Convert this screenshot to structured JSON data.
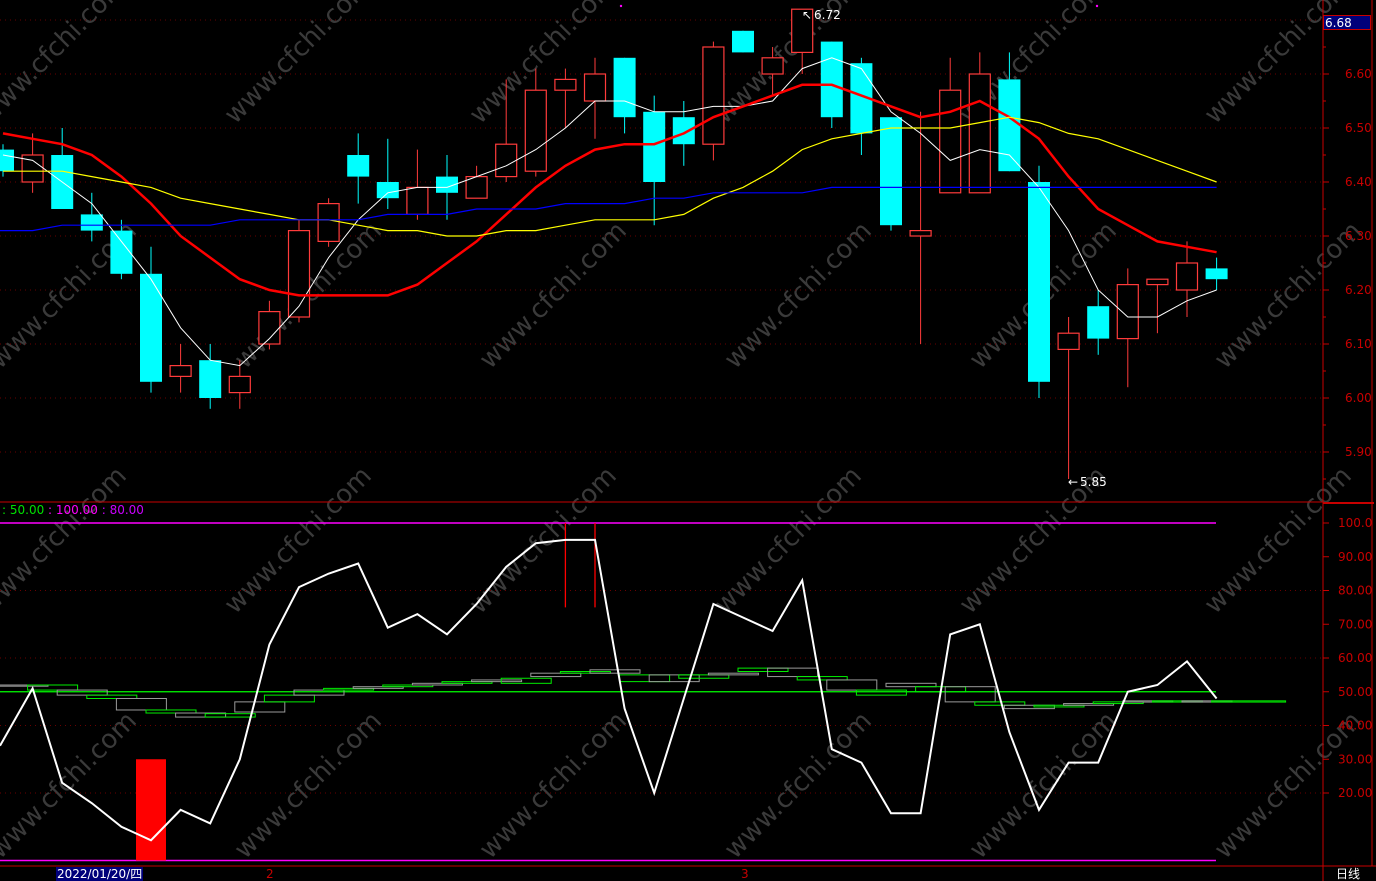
{
  "watermark": "www.cfchi.com",
  "current_price_tag": "6.68",
  "period_label": "日线",
  "date_axis": {
    "highlighted_date": "2022/01/20/四",
    "month_labels": [
      "2",
      "3"
    ]
  },
  "indicator_legend": {
    "parts": [
      ": 50.00",
      " : 100.00",
      " : 80.00"
    ],
    "colors": [
      "#00e000",
      "#ff00ff",
      "#cc00ff"
    ]
  },
  "annotations": {
    "high_label": "6.72",
    "low_label": "5.85"
  },
  "colors": {
    "up_candle": "#ff3b3b",
    "down_candle": "#00ffff",
    "ma_white": "#ffffff",
    "ma_red": "#ff0000",
    "ma_yellow": "#ffff00",
    "ma_blue": "#0000ff",
    "axis": "#c80000",
    "band": "#ff00ff",
    "step": "#00ff00"
  },
  "chart_data": [
    {
      "type": "candlestick",
      "y_axis": {
        "ticks": [
          "6.60",
          "6.50",
          "6.40",
          "6.30",
          "6.20",
          "6.10",
          "6.00",
          "5.90"
        ],
        "range": [
          5.815,
          6.737
        ],
        "grid": true
      },
      "ohlc": [
        [
          6.46,
          6.47,
          6.41,
          6.42
        ],
        [
          6.4,
          6.49,
          6.38,
          6.45
        ],
        [
          6.45,
          6.5,
          6.35,
          6.35
        ],
        [
          6.34,
          6.38,
          6.29,
          6.31
        ],
        [
          6.31,
          6.33,
          6.22,
          6.23
        ],
        [
          6.23,
          6.28,
          6.01,
          6.03
        ],
        [
          6.04,
          6.1,
          6.01,
          6.06
        ],
        [
          6.07,
          6.1,
          5.98,
          6.0
        ],
        [
          6.01,
          6.07,
          5.98,
          6.04
        ],
        [
          6.1,
          6.18,
          6.09,
          6.16
        ],
        [
          6.15,
          6.33,
          6.14,
          6.31
        ],
        [
          6.29,
          6.37,
          6.28,
          6.36
        ],
        [
          6.45,
          6.49,
          6.36,
          6.41
        ],
        [
          6.4,
          6.48,
          6.35,
          6.37
        ],
        [
          6.34,
          6.46,
          6.33,
          6.39
        ],
        [
          6.41,
          6.45,
          6.33,
          6.38
        ],
        [
          6.37,
          6.43,
          6.37,
          6.41
        ],
        [
          6.41,
          6.59,
          6.4,
          6.47
        ],
        [
          6.42,
          6.61,
          6.41,
          6.57
        ],
        [
          6.57,
          6.61,
          6.5,
          6.59
        ],
        [
          6.55,
          6.63,
          6.48,
          6.6
        ],
        [
          6.63,
          6.63,
          6.49,
          6.52
        ],
        [
          6.53,
          6.56,
          6.32,
          6.4
        ],
        [
          6.52,
          6.55,
          6.43,
          6.47
        ],
        [
          6.47,
          6.66,
          6.44,
          6.65
        ],
        [
          6.68,
          6.68,
          6.64,
          6.64
        ],
        [
          6.6,
          6.65,
          6.56,
          6.63
        ],
        [
          6.64,
          6.72,
          6.6,
          6.72
        ],
        [
          6.66,
          6.66,
          6.5,
          6.52
        ],
        [
          6.62,
          6.63,
          6.45,
          6.49
        ],
        [
          6.52,
          6.52,
          6.31,
          6.32
        ],
        [
          6.3,
          6.53,
          6.1,
          6.31
        ],
        [
          6.38,
          6.63,
          6.38,
          6.57
        ],
        [
          6.38,
          6.64,
          6.38,
          6.6
        ],
        [
          6.59,
          6.64,
          6.42,
          6.42
        ],
        [
          6.4,
          6.43,
          6.0,
          6.03
        ],
        [
          6.09,
          6.15,
          5.85,
          6.12
        ],
        [
          6.17,
          6.2,
          6.08,
          6.11
        ],
        [
          6.11,
          6.24,
          6.02,
          6.21
        ],
        [
          6.21,
          6.22,
          6.12,
          6.22
        ],
        [
          6.2,
          6.29,
          6.15,
          6.25
        ],
        [
          6.24,
          6.26,
          6.2,
          6.22
        ]
      ],
      "series": [
        {
          "color": "#ffffff",
          "values": [
            6.45,
            6.44,
            6.4,
            6.36,
            6.29,
            6.22,
            6.13,
            6.07,
            6.06,
            6.11,
            6.17,
            6.26,
            6.33,
            6.38,
            6.39,
            6.39,
            6.41,
            6.43,
            6.46,
            6.5,
            6.55,
            6.55,
            6.53,
            6.53,
            6.54,
            6.54,
            6.55,
            6.61,
            6.63,
            6.61,
            6.53,
            6.49,
            6.44,
            6.46,
            6.45,
            6.39,
            6.31,
            6.2,
            6.15,
            6.15,
            6.18,
            6.2
          ]
        },
        {
          "color": "#ff0000",
          "values": [
            6.49,
            6.48,
            6.47,
            6.45,
            6.41,
            6.36,
            6.3,
            6.26,
            6.22,
            6.2,
            6.19,
            6.19,
            6.19,
            6.19,
            6.21,
            6.25,
            6.29,
            6.34,
            6.39,
            6.43,
            6.46,
            6.47,
            6.47,
            6.49,
            6.52,
            6.54,
            6.56,
            6.58,
            6.58,
            6.56,
            6.54,
            6.52,
            6.53,
            6.55,
            6.52,
            6.48,
            6.41,
            6.35,
            6.32,
            6.29,
            6.28,
            6.27
          ]
        },
        {
          "color": "#ffff00",
          "values": [
            6.42,
            6.42,
            6.42,
            6.41,
            6.4,
            6.39,
            6.37,
            6.36,
            6.35,
            6.34,
            6.33,
            6.33,
            6.32,
            6.31,
            6.31,
            6.3,
            6.3,
            6.31,
            6.31,
            6.32,
            6.33,
            6.33,
            6.33,
            6.34,
            6.37,
            6.39,
            6.42,
            6.46,
            6.48,
            6.49,
            6.5,
            6.5,
            6.5,
            6.51,
            6.52,
            6.51,
            6.49,
            6.48,
            6.46,
            6.44,
            6.42,
            6.4
          ]
        },
        {
          "color": "#0000ff",
          "values": [
            6.31,
            6.31,
            6.32,
            6.32,
            6.32,
            6.32,
            6.32,
            6.32,
            6.33,
            6.33,
            6.33,
            6.33,
            6.33,
            6.34,
            6.34,
            6.34,
            6.35,
            6.35,
            6.35,
            6.36,
            6.36,
            6.36,
            6.37,
            6.37,
            6.38,
            6.38,
            6.38,
            6.38,
            6.39,
            6.39,
            6.39,
            6.39,
            6.39,
            6.39,
            6.39,
            6.39,
            6.39,
            6.39,
            6.39,
            6.39,
            6.39,
            6.39
          ]
        }
      ]
    },
    {
      "type": "line",
      "y_axis": {
        "ticks": [
          "100.0",
          "90.00",
          "80.00",
          "70.00",
          "60.00",
          "50.00",
          "40.00",
          "30.00",
          "20.00"
        ],
        "range": [
          0,
          100
        ],
        "grid": true
      },
      "reference_lines": [
        100,
        50,
        0
      ],
      "line": [
        34,
        51,
        23,
        17,
        10,
        6,
        15,
        11,
        30,
        64,
        81,
        85,
        88,
        69,
        73,
        67,
        76,
        87,
        94,
        95,
        95,
        45,
        20,
        48,
        76,
        72,
        68,
        83,
        33,
        29,
        14,
        14,
        67,
        70,
        38,
        15,
        29,
        29,
        50,
        52,
        59,
        48
      ],
      "step_bands": [
        [
          52,
          52
        ],
        [
          52,
          50.5
        ],
        [
          50.5,
          49
        ],
        [
          49,
          48
        ],
        [
          48,
          44.6
        ],
        [
          44.6,
          43.7
        ],
        [
          43.7,
          42.5
        ],
        [
          43.5,
          42.5
        ],
        [
          47,
          44
        ],
        [
          49,
          47
        ],
        [
          50.5,
          49
        ],
        [
          51,
          50.5
        ],
        [
          51.5,
          51
        ],
        [
          52,
          51.5
        ],
        [
          52.5,
          52
        ],
        [
          53,
          52.5
        ],
        [
          53.5,
          53
        ],
        [
          54,
          52.5
        ],
        [
          55.5,
          54.5
        ],
        [
          56,
          55.5
        ],
        [
          56.5,
          55.5
        ],
        [
          55,
          53
        ],
        [
          55,
          53
        ],
        [
          55,
          54
        ],
        [
          55.5,
          55
        ],
        [
          57,
          56
        ],
        [
          57,
          54.5
        ],
        [
          54.5,
          53.5
        ],
        [
          53.5,
          50.5
        ],
        [
          50.5,
          49
        ],
        [
          52.5,
          51.5
        ],
        [
          51.5,
          50
        ],
        [
          51.5,
          47
        ],
        [
          47,
          46
        ],
        [
          46,
          45
        ],
        [
          46,
          45.5
        ],
        [
          46.5,
          46
        ],
        [
          47,
          46.5
        ],
        [
          47.3,
          47
        ],
        [
          47.3,
          47.3
        ],
        [
          47.3,
          47.3
        ],
        [
          47.3,
          47.3
        ]
      ],
      "signal_bar": {
        "index": 5,
        "value": 30
      },
      "signal_spikes": [
        {
          "index": 19,
          "from": 100,
          "to": 75
        },
        {
          "index": 20,
          "from": 100,
          "to": 75
        }
      ]
    }
  ]
}
